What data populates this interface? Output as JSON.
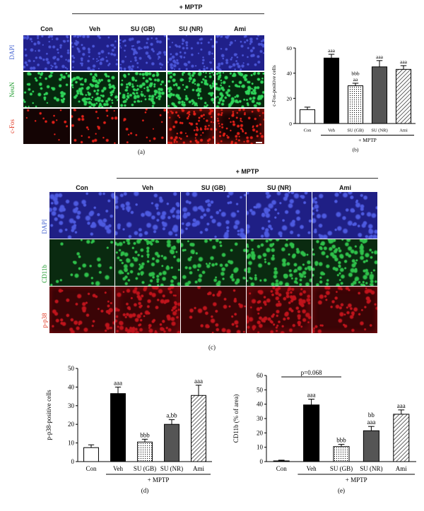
{
  "colors": {
    "dapi": "#2b2fa8",
    "neun": "#1f8c3a",
    "cfos": "#c0141a",
    "cd11b": "#1a8a2e",
    "pp38": "#b00a12",
    "dapi_label": "#3f5fd0",
    "green_label": "#1a9a2a",
    "red_label": "#e0301a"
  },
  "figA": {
    "group_label": "+ MPTP",
    "columns": [
      "Con",
      "Veh",
      "SU (GB)",
      "SU (NR)",
      "Ami"
    ],
    "rows": [
      "DAPI",
      "NeuN",
      "c-Fos"
    ],
    "caption": "(a)"
  },
  "figC": {
    "group_label": "+ MPTP",
    "columns": [
      "Con",
      "Veh",
      "SU (GB)",
      "SU (NR)",
      "Ami"
    ],
    "rows": [
      "DAPI",
      "CD11b",
      "p-p38"
    ],
    "caption": "(c)"
  },
  "chart_data": [
    {
      "id": "b",
      "type": "bar",
      "caption": "(b)",
      "ylabel": "c-Fos-positive cells",
      "ylim": [
        0,
        60
      ],
      "yticks": [
        "0",
        "20",
        "40",
        "60"
      ],
      "categories": [
        "Con",
        "Veh",
        "SU (GB)",
        "SU (NR)",
        "Ami"
      ],
      "values": [
        11,
        52,
        30,
        45,
        43
      ],
      "errors": [
        2,
        3,
        2,
        5,
        3
      ],
      "annotations": [
        "",
        "aaa",
        "bbb\naa",
        "aaa",
        "aaa"
      ],
      "group_label": "+ MPTP"
    },
    {
      "id": "d",
      "type": "bar",
      "caption": "(d)",
      "ylabel": "p-p38-positive cells",
      "ylim": [
        0,
        50
      ],
      "yticks": [
        "0",
        "10",
        "20",
        "30",
        "40",
        "50"
      ],
      "categories": [
        "Con",
        "Veh",
        "SU (GB)",
        "SU (NR)",
        "Ami"
      ],
      "values": [
        7.5,
        36.5,
        10.5,
        20,
        35.5
      ],
      "errors": [
        1.5,
        3.5,
        1.5,
        2.5,
        5.5
      ],
      "annotations": [
        "",
        "aaa",
        "bbb",
        "a,bb",
        "aaa"
      ],
      "group_label": "+ MPTP"
    },
    {
      "id": "e",
      "type": "bar",
      "caption": "(e)",
      "ylabel": "CD11b (% of area)",
      "ylim": [
        0,
        60
      ],
      "yticks": [
        "0",
        "10",
        "20",
        "30",
        "40",
        "50",
        "60"
      ],
      "categories": [
        "Con",
        "Veh",
        "SU (GB)",
        "SU (NR)",
        "Ami"
      ],
      "values": [
        0.5,
        39.5,
        10.5,
        21.5,
        33
      ],
      "errors": [
        0.5,
        4,
        1.5,
        3,
        3
      ],
      "annotations": [
        "",
        "aaa",
        "bbb",
        "bb\naaa",
        "aaa"
      ],
      "group_label": "+ MPTP",
      "bracket_label": "p=0.068"
    }
  ]
}
